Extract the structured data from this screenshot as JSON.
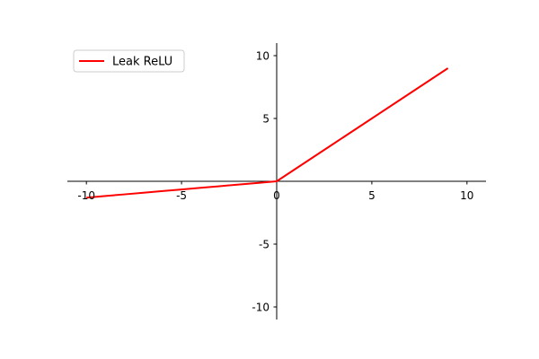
{
  "chart_data": {
    "type": "line",
    "title": "",
    "xlabel": "",
    "ylabel": "",
    "xlim": [
      -11,
      11
    ],
    "ylim": [
      -11,
      11
    ],
    "axes_style": "spines-through-origin",
    "grid": false,
    "legend_placement": "top-left",
    "x_ticks": [
      -10,
      -5,
      0,
      5,
      10
    ],
    "y_ticks": [
      -10,
      -5,
      5,
      10
    ],
    "x_tick_labels": [
      "-10",
      "-5",
      "0",
      "5",
      "10"
    ],
    "y_tick_labels": [
      "-10",
      "-5",
      "5",
      "10"
    ],
    "series": [
      {
        "name": "Leak ReLU",
        "color": "#ff0000",
        "x": [
          -10,
          -9,
          -8,
          -7,
          -6,
          -5,
          -4,
          -3,
          -2,
          -1,
          0,
          1,
          2,
          3,
          4,
          5,
          6,
          7,
          8,
          9
        ],
        "y": [
          -1.3,
          -1.17,
          -1.04,
          -0.91,
          -0.78,
          -0.65,
          -0.52,
          -0.39,
          -0.26,
          -0.13,
          0,
          1,
          2,
          3,
          4,
          5,
          6,
          7,
          8,
          9
        ]
      }
    ]
  }
}
